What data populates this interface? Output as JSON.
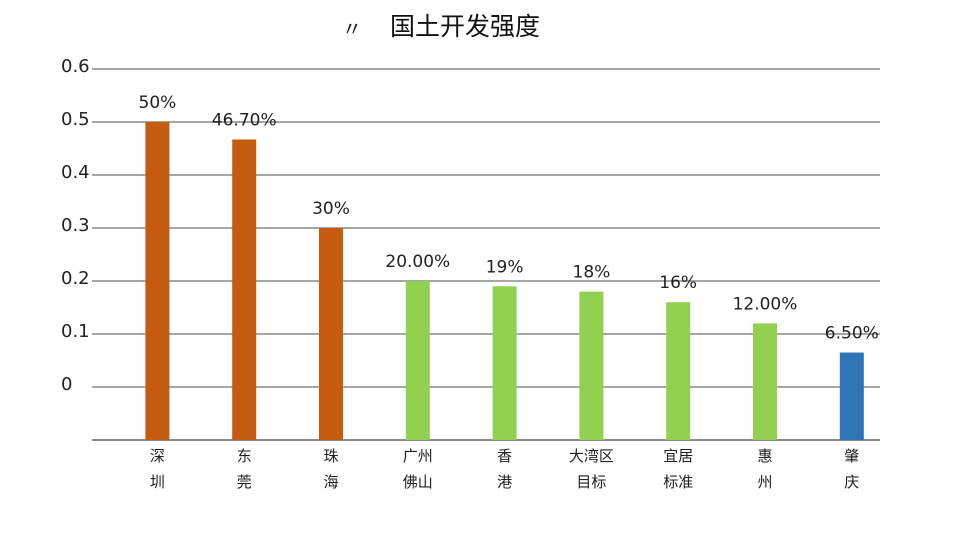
{
  "chart_data": {
    "type": "bar",
    "title": "国土开发强度",
    "title_prefix": "〃",
    "ylim": [
      0,
      0.6
    ],
    "yticks": [
      "0.6",
      "0.5",
      "0.4",
      "0.3",
      "0.2",
      "0.1",
      "0"
    ],
    "grid": true,
    "categories": [
      [
        "深",
        "圳"
      ],
      [
        "东",
        "莞"
      ],
      [
        "珠",
        "海"
      ],
      [
        "广州",
        "佛山"
      ],
      [
        "香",
        "港"
      ],
      [
        "大湾区",
        "目标"
      ],
      [
        "宜居",
        "标准"
      ],
      [
        "惠",
        "州"
      ],
      [
        "肇",
        "庆"
      ]
    ],
    "values": [
      0.5,
      0.467,
      0.3,
      0.2,
      0.19,
      0.18,
      0.16,
      0.12,
      0.065
    ],
    "data_labels": [
      "50%",
      "46.70%",
      "30%",
      "20.00%",
      "19%",
      "18%",
      "16%",
      "12.00%",
      "6.50%"
    ],
    "bar_colors": [
      "#c55a11",
      "#c55a11",
      "#c55a11",
      "#92d050",
      "#92d050",
      "#92d050",
      "#92d050",
      "#92d050",
      "#2e75b6"
    ],
    "gridline_color": "#a6a6a6",
    "axis_color": "#8c8c8c"
  }
}
